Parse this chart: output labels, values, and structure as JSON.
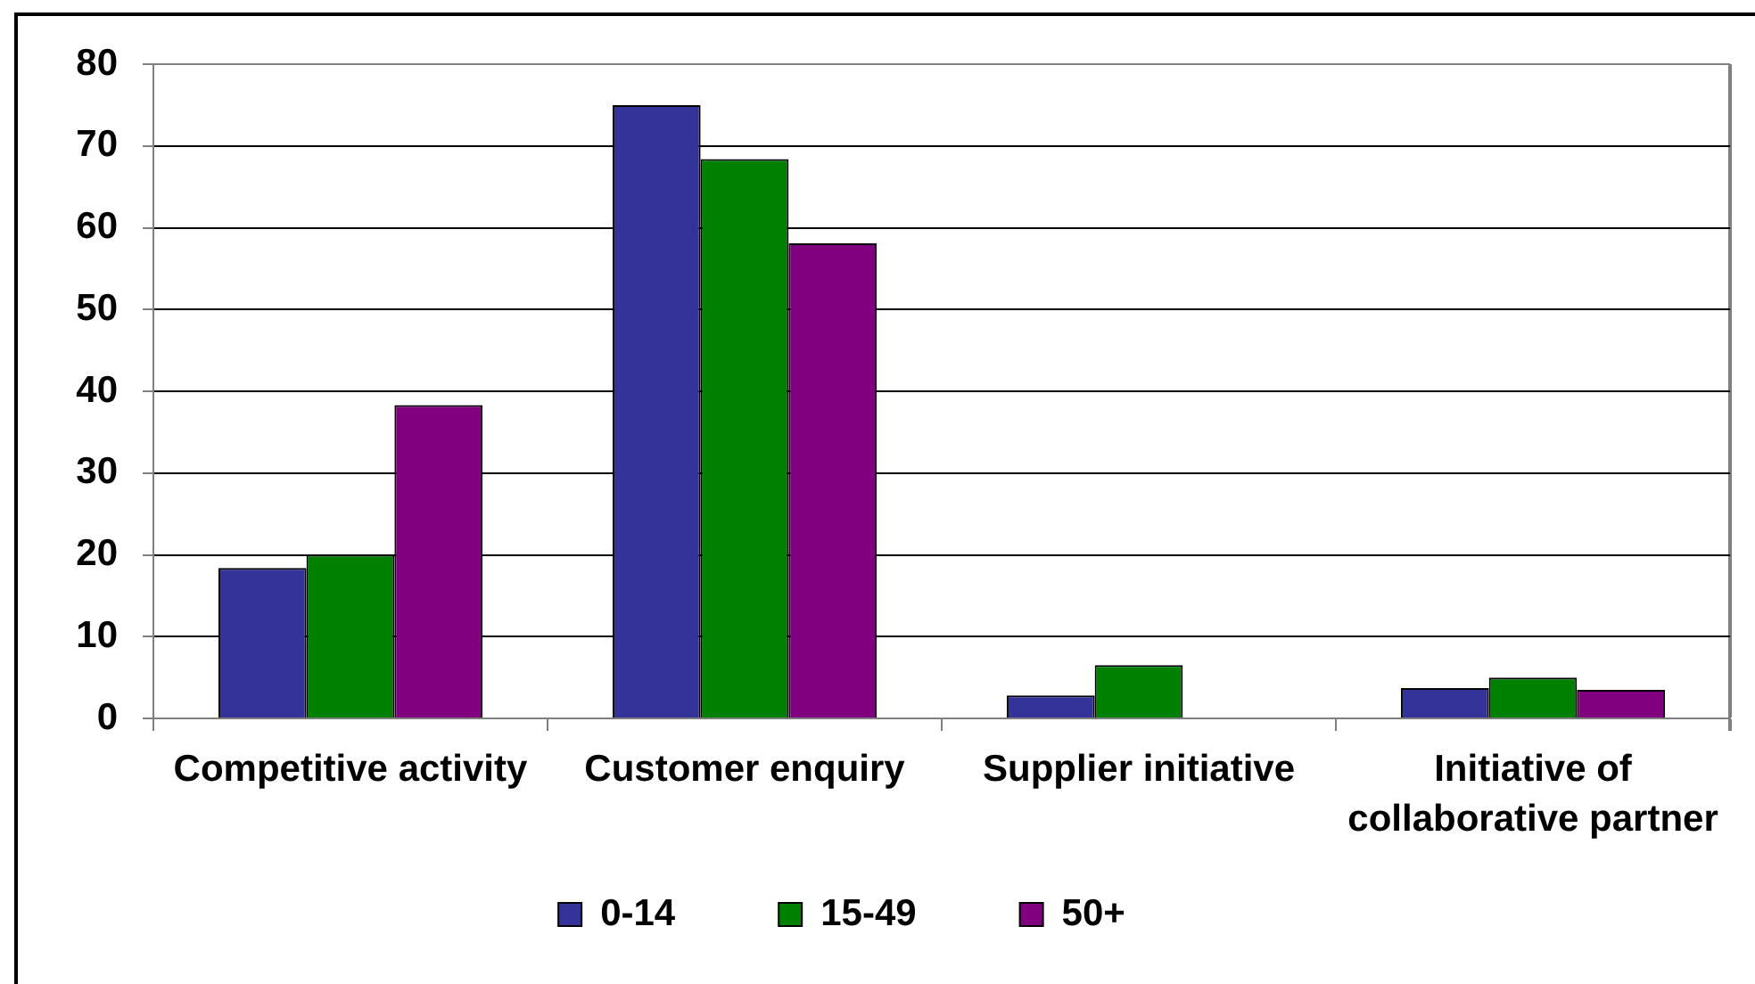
{
  "chart_data": {
    "type": "bar",
    "categories": [
      "Competitive activity",
      "Customer enquiry",
      "Supplier initiative",
      "Initiative of collaborative partner"
    ],
    "series": [
      {
        "name": "0-14",
        "color": "#333399",
        "values": [
          18.4,
          75,
          2.8,
          3.7
        ]
      },
      {
        "name": "15-49",
        "color": "#008000",
        "values": [
          20,
          68.4,
          6.5,
          5
        ]
      },
      {
        "name": "50+",
        "color": "#800080",
        "values": [
          38.3,
          58.1,
          null,
          3.5
        ]
      }
    ],
    "ylim": [
      0,
      80
    ],
    "yticks": [
      0,
      10,
      20,
      30,
      40,
      50,
      60,
      70,
      80
    ],
    "grid": "y",
    "legend": "bottom"
  }
}
